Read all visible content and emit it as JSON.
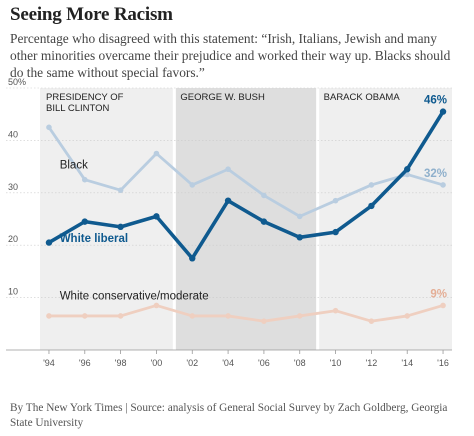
{
  "header": {
    "title": "Seeing More Racism",
    "subtitle": "Percentage who disagreed with this statement: “Irish, Italians, Jewish and many other minorities overcame their prejudice and worked their way up. Blacks should do the same without special favors.”"
  },
  "footer": {
    "source": "By The New York Times | Source: analysis of General Social Survey by Zach Goldberg, Georgia State University"
  },
  "chart_data": {
    "type": "line",
    "x": [
      1994,
      1996,
      1998,
      2000,
      2002,
      2004,
      2006,
      2008,
      2010,
      2012,
      2014,
      2016
    ],
    "x_tick_labels": [
      "'94",
      "'96",
      "'98",
      "'00",
      "'02",
      "'04",
      "'06",
      "'08",
      "'10",
      "'12",
      "'14",
      "'16"
    ],
    "y_tick_values": [
      10,
      20,
      30,
      40,
      50
    ],
    "y_tick_labels": [
      "10",
      "20",
      "30",
      "40",
      "50%"
    ],
    "ylim": [
      0,
      50
    ],
    "xlim": [
      1993.5,
      2016.5
    ],
    "grid": true,
    "periods": [
      {
        "label_lines": [
          "PRESIDENCY OF",
          "BILL CLINTON"
        ],
        "start": 1993.5,
        "end": 2001,
        "shade": "#efefef"
      },
      {
        "label_lines": [
          "GEORGE W. BUSH"
        ],
        "start": 2001,
        "end": 2009,
        "shade": "#dedede"
      },
      {
        "label_lines": [
          "BARACK OBAMA"
        ],
        "start": 2009,
        "end": 2016.5,
        "shade": "#efefef"
      }
    ],
    "series": [
      {
        "name": "Black",
        "color": "#b9cde0",
        "label_color": "#222222",
        "end_label": "32%",
        "end_label_color": "#8fb0cc",
        "values": [
          42.5,
          32.5,
          30.5,
          37.5,
          31.5,
          34.5,
          29.5,
          25.5,
          28.5,
          31.5,
          33.5,
          31.5
        ]
      },
      {
        "name": "White liberal",
        "color": "#0f5a8f",
        "label_color": "#0f5a8f",
        "end_label": "46%",
        "end_label_color": "#0f5a8f",
        "values": [
          20.5,
          24.5,
          23.5,
          25.5,
          17.5,
          28.5,
          24.5,
          21.5,
          22.5,
          27.5,
          34.5,
          45.5
        ]
      },
      {
        "name": "White conservative/moderate",
        "color": "#efcfc0",
        "label_color": "#222222",
        "end_label": "9%",
        "end_label_color": "#e4ae96",
        "values": [
          6.5,
          6.5,
          6.5,
          8.5,
          6.5,
          6.5,
          5.5,
          6.5,
          7.5,
          5.5,
          6.5,
          8.5
        ]
      }
    ]
  }
}
